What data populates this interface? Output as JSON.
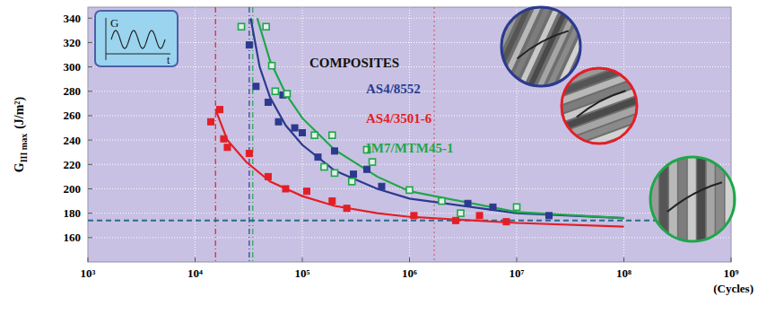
{
  "chart_data": {
    "type": "scatter",
    "log": "x",
    "grid": true,
    "marker": "square",
    "x_label": "(Cycles)",
    "y_label": {
      "symbol": "G",
      "subscript": "III max",
      "unit": "(J/m²)"
    },
    "annotation": "COMPOSITES",
    "inset": {
      "y_label": "G",
      "x_label": "t"
    },
    "xlim": [
      1000,
      1000000000
    ],
    "xticks": [
      {
        "value": 1000,
        "label": "10³"
      },
      {
        "value": 10000,
        "label": "10⁴"
      },
      {
        "value": 100000,
        "label": "10⁵"
      },
      {
        "value": 1000000,
        "label": "10⁶"
      },
      {
        "value": 10000000,
        "label": "10⁷"
      },
      {
        "value": 100000000,
        "label": "10⁸"
      },
      {
        "value": 1000000000,
        "label": "10⁹"
      }
    ],
    "ylim": [
      140,
      349
    ],
    "yticks": [
      160,
      180,
      200,
      220,
      240,
      260,
      280,
      300,
      320,
      340
    ],
    "series": [
      {
        "name": "AS4/8552",
        "color": "#2b3a8f",
        "marker": "square",
        "line_style": "solid",
        "x": [
          32000,
          37000,
          48000,
          60000,
          66000,
          85000,
          100000,
          140000,
          200000,
          300000,
          400000,
          550000,
          3500000,
          6000000,
          20000000
        ],
        "values": [
          318,
          284,
          271,
          255,
          277,
          250,
          246,
          226,
          231,
          212,
          216,
          202,
          188,
          185,
          178
        ],
        "fit_x": [
          33000,
          40000,
          50000,
          70000,
          100000,
          200000,
          500000,
          1000000,
          10000000,
          100000000
        ],
        "fit_values": [
          340,
          300,
          275,
          252,
          236,
          215,
          200,
          192,
          180,
          176
        ]
      },
      {
        "name": "AS4/3501-6",
        "color": "#e41e26",
        "marker": "square",
        "line_style": "solid",
        "x": [
          14000,
          17000,
          18500,
          20000,
          32000,
          48000,
          70000,
          110000,
          190000,
          260000,
          1100000,
          2700000,
          4500000,
          8000000
        ],
        "values": [
          255,
          265,
          241,
          234,
          229,
          210,
          200,
          198,
          190,
          184,
          178,
          174,
          178,
          173
        ],
        "fit_x": [
          15500,
          20000,
          30000,
          50000,
          100000,
          200000,
          500000,
          1000000,
          10000000,
          100000000
        ],
        "fit_values": [
          265,
          240,
          222,
          206,
          194,
          186,
          180,
          177,
          172,
          169
        ]
      },
      {
        "name": "IM7/MTM45-1",
        "color": "#1fa64a",
        "marker": "open_square",
        "line_style": "solid",
        "x": [
          27000,
          46000,
          52000,
          56000,
          72000,
          130000,
          160000,
          190000,
          200000,
          290000,
          400000,
          450000,
          1000000,
          2000000,
          3000000,
          10000000
        ],
        "values": [
          333,
          333,
          301,
          280,
          278,
          244,
          218,
          244,
          213,
          206,
          232,
          222,
          199,
          190,
          180,
          185
        ],
        "fit_x": [
          38000,
          50000,
          70000,
          100000,
          200000,
          500000,
          1000000,
          10000000,
          100000000
        ],
        "fit_values": [
          340,
          305,
          278,
          258,
          232,
          210,
          198,
          181,
          176
        ]
      }
    ],
    "reference_lines": [
      {
        "axis": "x",
        "value": 15500,
        "color": "#e41e26",
        "line_style": "dashdot"
      },
      {
        "axis": "x",
        "value": 32000,
        "color": "#2b3a8f",
        "line_style": "dashdot"
      },
      {
        "axis": "x",
        "value": 34500,
        "color": "#1fa64a",
        "line_style": "dashdot"
      },
      {
        "axis": "x",
        "value": 1700000,
        "color": "#e41e26",
        "line_style": "dotted"
      },
      {
        "axis": "y",
        "value": 174,
        "color": "#2a6a8a",
        "line_style": "dashed"
      }
    ]
  }
}
